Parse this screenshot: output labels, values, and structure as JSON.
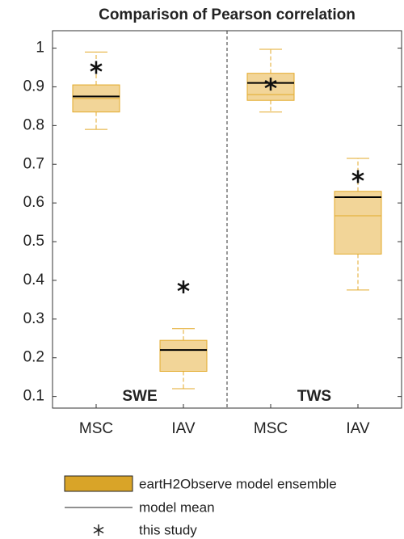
{
  "chart_data": {
    "type": "box",
    "title": "Comparison of Pearson correlation",
    "categories": [
      "MSC",
      "IAV",
      "MSC",
      "IAV"
    ],
    "groups": [
      "SWE",
      "TWS"
    ],
    "boxes": [
      {
        "whislo": 0.79,
        "q1": 0.835,
        "med": 0.87,
        "q3": 0.905,
        "whishi": 0.99,
        "mean": 0.875,
        "study": 0.95
      },
      {
        "whislo": 0.12,
        "q1": 0.165,
        "med": 0.22,
        "q3": 0.245,
        "whishi": 0.275,
        "mean": 0.22,
        "study": 0.383
      },
      {
        "whislo": 0.835,
        "q1": 0.865,
        "med": 0.88,
        "q3": 0.935,
        "whishi": 0.997,
        "mean": 0.91,
        "study": 0.907
      },
      {
        "whislo": 0.375,
        "q1": 0.468,
        "med": 0.567,
        "q3": 0.63,
        "whishi": 0.715,
        "mean": 0.615,
        "study": 0.668
      }
    ],
    "box_color": "#f2d598",
    "edge_color": "#e3aa2a",
    "mean_color": "#000000",
    "study_color": "#111111",
    "ylim": [
      0.07,
      1.045
    ],
    "yticks": [
      0.1,
      0.2,
      0.3,
      0.4,
      0.5,
      0.6,
      0.7,
      0.8,
      0.9,
      1
    ],
    "legend": {
      "ensemble": "eartH2Observe model ensemble",
      "mean": "model mean",
      "study": "this study",
      "patch_color": "#d9a428"
    }
  }
}
